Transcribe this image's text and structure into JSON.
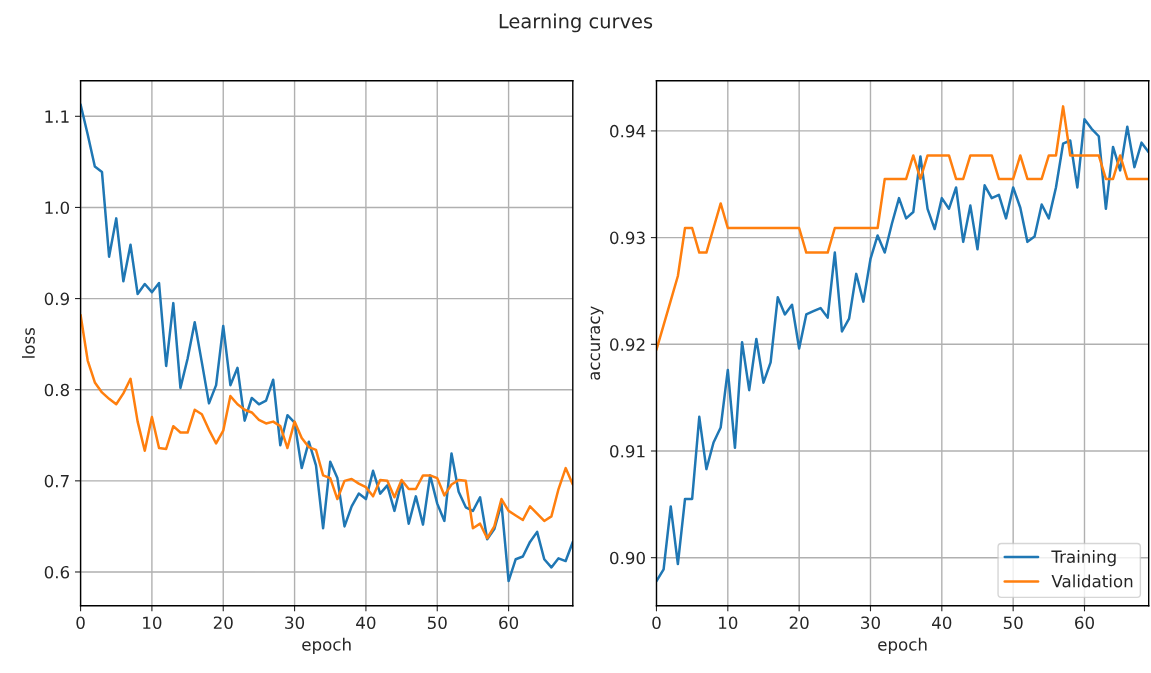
{
  "chart_data": [
    {
      "type": "line",
      "title": "Learning curves",
      "xlabel": "epoch",
      "ylabel": "loss",
      "x": [
        0,
        1,
        2,
        3,
        4,
        5,
        6,
        7,
        8,
        9,
        10,
        11,
        12,
        13,
        14,
        15,
        16,
        17,
        18,
        19,
        20,
        21,
        22,
        23,
        24,
        25,
        26,
        27,
        28,
        29,
        30,
        31,
        32,
        33,
        34,
        35,
        36,
        37,
        38,
        39,
        40,
        41,
        42,
        43,
        44,
        45,
        46,
        47,
        48,
        49,
        50,
        51,
        52,
        53,
        54,
        55,
        56,
        57,
        58,
        59,
        60,
        61,
        62,
        63,
        64,
        65,
        66,
        67,
        68,
        69
      ],
      "xlim": [
        0,
        69
      ],
      "xticks": [
        0,
        10,
        20,
        30,
        40,
        50,
        60
      ],
      "ylim": [
        0.563,
        1.139
      ],
      "yticks": [
        0.6,
        0.7,
        0.8,
        0.9,
        {
          "value": 1.0,
          "label": "1.0"
        },
        1.1
      ],
      "grid": true,
      "legend": false,
      "series": [
        {
          "color": "#1f77b4",
          "values": [
            1.113,
            1.08,
            1.045,
            1.039,
            0.946,
            0.988,
            0.919,
            0.959,
            0.905,
            0.916,
            0.907,
            0.917,
            0.826,
            0.895,
            0.802,
            0.834,
            0.874,
            0.83,
            0.785,
            0.805,
            0.87,
            0.805,
            0.824,
            0.766,
            0.791,
            0.784,
            0.788,
            0.811,
            0.739,
            0.772,
            0.764,
            0.714,
            0.743,
            0.717,
            0.648,
            0.721,
            0.703,
            0.65,
            0.672,
            0.686,
            0.68,
            0.711,
            0.686,
            0.695,
            0.667,
            0.699,
            0.653,
            0.683,
            0.652,
            0.706,
            0.675,
            0.656,
            0.73,
            0.688,
            0.671,
            0.667,
            0.682,
            0.636,
            0.647,
            0.675,
            0.59,
            0.614,
            0.617,
            0.633,
            0.644,
            0.614,
            0.605,
            0.615,
            0.612,
            0.633
          ]
        },
        {
          "color": "#ff7f0e",
          "values": [
            0.882,
            0.832,
            0.808,
            0.797,
            0.79,
            0.784,
            0.796,
            0.812,
            0.765,
            0.733,
            0.77,
            0.736,
            0.735,
            0.76,
            0.753,
            0.753,
            0.778,
            0.773,
            0.756,
            0.741,
            0.755,
            0.793,
            0.784,
            0.778,
            0.775,
            0.767,
            0.763,
            0.765,
            0.76,
            0.736,
            0.765,
            0.747,
            0.737,
            0.734,
            0.706,
            0.703,
            0.68,
            0.7,
            0.702,
            0.697,
            0.693,
            0.683,
            0.701,
            0.7,
            0.682,
            0.701,
            0.691,
            0.691,
            0.706,
            0.706,
            0.703,
            0.684,
            0.696,
            0.701,
            0.7,
            0.648,
            0.653,
            0.637,
            0.65,
            0.68,
            0.667,
            0.662,
            0.657,
            0.672,
            0.664,
            0.656,
            0.661,
            0.691,
            0.714,
            0.696
          ]
        }
      ]
    },
    {
      "type": "line",
      "xlabel": "epoch",
      "ylabel": "accuracy",
      "x": [
        0,
        1,
        2,
        3,
        4,
        5,
        6,
        7,
        8,
        9,
        10,
        11,
        12,
        13,
        14,
        15,
        16,
        17,
        18,
        19,
        20,
        21,
        22,
        23,
        24,
        25,
        26,
        27,
        28,
        29,
        30,
        31,
        32,
        33,
        34,
        35,
        36,
        37,
        38,
        39,
        40,
        41,
        42,
        43,
        44,
        45,
        46,
        47,
        48,
        49,
        50,
        51,
        52,
        53,
        54,
        55,
        56,
        57,
        58,
        59,
        60,
        61,
        62,
        63,
        64,
        65,
        66,
        67,
        68,
        69
      ],
      "xlim": [
        0,
        69
      ],
      "xticks": [
        0,
        10,
        20,
        30,
        40,
        50,
        60
      ],
      "ylim": [
        0.8955,
        0.9447
      ],
      "yticks": [
        {
          "value": 0.9,
          "label": "0.90"
        },
        0.91,
        0.92,
        0.93,
        0.94
      ],
      "grid": true,
      "legend": "bottom right",
      "series": [
        {
          "name": "Training",
          "color": "#1f77b4",
          "values": [
            0.8978,
            0.8989,
            0.9048,
            0.8994,
            0.9055,
            0.9055,
            0.9132,
            0.9083,
            0.9108,
            0.9122,
            0.9176,
            0.9103,
            0.9202,
            0.9157,
            0.9205,
            0.9164,
            0.9183,
            0.9244,
            0.9228,
            0.9237,
            0.9196,
            0.9228,
            0.9231,
            0.9234,
            0.9225,
            0.9286,
            0.9212,
            0.9224,
            0.9266,
            0.924,
            0.928,
            0.9302,
            0.9286,
            0.9313,
            0.9337,
            0.9318,
            0.9324,
            0.9376,
            0.9327,
            0.9308,
            0.9337,
            0.9327,
            0.9347,
            0.9296,
            0.933,
            0.9289,
            0.9349,
            0.9337,
            0.934,
            0.9318,
            0.9347,
            0.9328,
            0.9296,
            0.9301,
            0.9331,
            0.9318,
            0.9347,
            0.9388,
            0.9391,
            0.9347,
            0.9411,
            0.9402,
            0.9395,
            0.9327,
            0.9385,
            0.9363,
            0.9404,
            0.9366,
            0.9389,
            0.938
          ]
        },
        {
          "name": "Validation",
          "color": "#ff7f0e",
          "values": [
            0.9195,
            0.9218,
            0.9241,
            0.9264,
            0.9309,
            0.9309,
            0.9286,
            0.9286,
            0.9309,
            0.9332,
            0.9309,
            0.9309,
            0.9309,
            0.9309,
            0.9309,
            0.9309,
            0.9309,
            0.9309,
            0.9309,
            0.9309,
            0.9309,
            0.9286,
            0.9286,
            0.9286,
            0.9286,
            0.9309,
            0.9309,
            0.9309,
            0.9309,
            0.9309,
            0.9309,
            0.9309,
            0.9355,
            0.9355,
            0.9355,
            0.9355,
            0.9377,
            0.9355,
            0.9377,
            0.9377,
            0.9377,
            0.9377,
            0.9355,
            0.9355,
            0.9377,
            0.9377,
            0.9377,
            0.9377,
            0.9355,
            0.9355,
            0.9355,
            0.9377,
            0.9355,
            0.9355,
            0.9355,
            0.9377,
            0.9377,
            0.9423,
            0.9377,
            0.9377,
            0.9377,
            0.9377,
            0.9377,
            0.9355,
            0.9355,
            0.9377,
            0.9355,
            0.9355,
            0.9355,
            0.9355
          ]
        }
      ]
    }
  ]
}
